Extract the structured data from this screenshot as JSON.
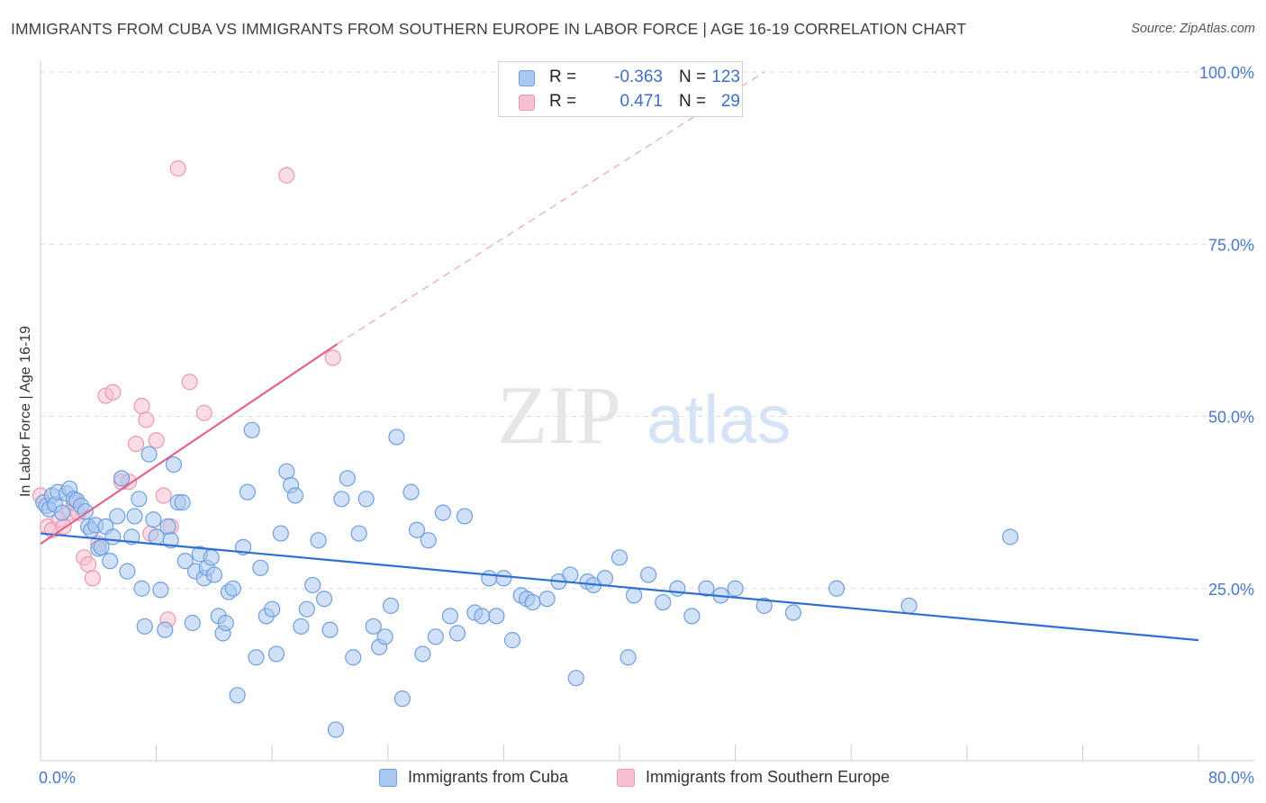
{
  "header": {
    "title": "IMMIGRANTS FROM CUBA VS IMMIGRANTS FROM SOUTHERN EUROPE IN LABOR FORCE | AGE 16-19 CORRELATION CHART",
    "source": "Source: ZipAtlas.com"
  },
  "watermark": {
    "zip": "ZIP",
    "atlas": "atlas"
  },
  "legend": {
    "rows": [
      {
        "r_label": "R =",
        "r_value": "-0.363",
        "n_label": "N =",
        "n_value": "123"
      },
      {
        "r_label": "R =",
        "r_value": "0.471",
        "n_label": "N =",
        "n_value": "29"
      }
    ]
  },
  "bottom_legend": {
    "cuba": "Immigrants from Cuba",
    "seurope": "Immigrants from Southern Europe"
  },
  "colors": {
    "cuba_fill": "#a9c8f0",
    "cuba_stroke": "#6f9fdd",
    "cuba_line": "#2f6fd0",
    "seurope_fill": "#f6c0d0",
    "seurope_stroke": "#e99ab2",
    "seurope_line": "#e0648c",
    "grid": "#dcdcdc",
    "tick_label": "#4a78c8"
  },
  "chart_data": {
    "type": "scatter",
    "title": "IMMIGRANTS FROM CUBA VS IMMIGRANTS FROM SOUTHERN EUROPE IN LABOR FORCE | AGE 16-19 CORRELATION CHART",
    "xlabel": "",
    "ylabel": "In Labor Force | Age 16-19",
    "xlim": [
      0,
      80
    ],
    "ylim": [
      0,
      100
    ],
    "x_tick_labels": [
      "0.0%",
      "80.0%"
    ],
    "y_ticks": [
      {
        "value": 25,
        "label": "25.0%"
      },
      {
        "value": 50,
        "label": "50.0%"
      },
      {
        "value": 75,
        "label": "75.0%"
      },
      {
        "value": 100,
        "label": "100.0%"
      }
    ],
    "grid": true,
    "series": [
      {
        "name": "Immigrants from Cuba",
        "r": -0.363,
        "n": 123,
        "trend": {
          "x": [
            0,
            80
          ],
          "y": [
            33.0,
            17.5
          ],
          "dashed_extension": false
        },
        "points": [
          [
            0.2,
            37.5
          ],
          [
            0.4,
            37.0
          ],
          [
            0.6,
            36.5
          ],
          [
            0.8,
            38.5
          ],
          [
            1.0,
            37.2
          ],
          [
            1.2,
            39.0
          ],
          [
            1.5,
            36.0
          ],
          [
            1.8,
            38.8
          ],
          [
            2.0,
            39.5
          ],
          [
            2.3,
            38.0
          ],
          [
            2.5,
            37.8
          ],
          [
            2.8,
            37.0
          ],
          [
            3.1,
            36.2
          ],
          [
            3.3,
            34.0
          ],
          [
            3.5,
            33.5
          ],
          [
            3.8,
            34.2
          ],
          [
            4.0,
            30.8
          ],
          [
            4.2,
            31.0
          ],
          [
            4.5,
            34.0
          ],
          [
            4.8,
            29.0
          ],
          [
            5.0,
            32.5
          ],
          [
            5.3,
            35.5
          ],
          [
            5.6,
            41.0
          ],
          [
            6.0,
            27.5
          ],
          [
            6.3,
            32.5
          ],
          [
            6.5,
            35.5
          ],
          [
            6.8,
            38.0
          ],
          [
            7.0,
            25.0
          ],
          [
            7.2,
            19.5
          ],
          [
            7.5,
            44.5
          ],
          [
            7.8,
            35.0
          ],
          [
            8.0,
            32.5
          ],
          [
            8.3,
            24.8
          ],
          [
            8.6,
            19.0
          ],
          [
            8.8,
            34.0
          ],
          [
            9.0,
            32.0
          ],
          [
            9.2,
            43.0
          ],
          [
            9.5,
            37.5
          ],
          [
            9.8,
            37.5
          ],
          [
            10.0,
            29.0
          ],
          [
            10.5,
            20.0
          ],
          [
            10.7,
            27.5
          ],
          [
            11.0,
            30.0
          ],
          [
            11.3,
            26.5
          ],
          [
            11.5,
            28.0
          ],
          [
            11.8,
            29.5
          ],
          [
            12.0,
            27.0
          ],
          [
            12.3,
            21.0
          ],
          [
            12.6,
            18.5
          ],
          [
            12.8,
            20.0
          ],
          [
            13.0,
            24.5
          ],
          [
            13.3,
            25.0
          ],
          [
            13.6,
            9.5
          ],
          [
            14.0,
            31.0
          ],
          [
            14.3,
            39.0
          ],
          [
            14.6,
            48.0
          ],
          [
            14.9,
            15.0
          ],
          [
            15.2,
            28.0
          ],
          [
            15.6,
            21.0
          ],
          [
            16.0,
            22.0
          ],
          [
            16.3,
            15.5
          ],
          [
            16.6,
            33.0
          ],
          [
            17.0,
            42.0
          ],
          [
            17.3,
            40.0
          ],
          [
            17.6,
            38.5
          ],
          [
            18.0,
            19.5
          ],
          [
            18.4,
            22.0
          ],
          [
            18.8,
            25.5
          ],
          [
            19.2,
            32.0
          ],
          [
            19.6,
            23.5
          ],
          [
            20.0,
            19.0
          ],
          [
            20.4,
            4.5
          ],
          [
            20.8,
            38.0
          ],
          [
            21.2,
            41.0
          ],
          [
            21.6,
            15.0
          ],
          [
            22.0,
            33.0
          ],
          [
            22.5,
            38.0
          ],
          [
            23.0,
            19.5
          ],
          [
            23.4,
            16.5
          ],
          [
            23.8,
            18.0
          ],
          [
            24.2,
            22.5
          ],
          [
            24.6,
            47.0
          ],
          [
            25.0,
            9.0
          ],
          [
            25.6,
            39.0
          ],
          [
            26.0,
            33.5
          ],
          [
            26.4,
            15.5
          ],
          [
            26.8,
            32.0
          ],
          [
            27.3,
            18.0
          ],
          [
            27.8,
            36.0
          ],
          [
            28.3,
            21.0
          ],
          [
            28.8,
            18.5
          ],
          [
            29.3,
            35.5
          ],
          [
            30.0,
            21.5
          ],
          [
            30.5,
            21.0
          ],
          [
            31.0,
            26.5
          ],
          [
            31.5,
            21.0
          ],
          [
            32.0,
            26.5
          ],
          [
            32.6,
            17.5
          ],
          [
            33.2,
            24.0
          ],
          [
            33.6,
            23.5
          ],
          [
            34.0,
            23.0
          ],
          [
            35.0,
            23.5
          ],
          [
            35.8,
            26.0
          ],
          [
            36.6,
            27.0
          ],
          [
            37.0,
            12.0
          ],
          [
            37.8,
            26.0
          ],
          [
            38.2,
            25.5
          ],
          [
            39.0,
            26.5
          ],
          [
            40.0,
            29.5
          ],
          [
            40.6,
            15.0
          ],
          [
            41.0,
            24.0
          ],
          [
            42.0,
            27.0
          ],
          [
            43.0,
            23.0
          ],
          [
            44.0,
            25.0
          ],
          [
            45.0,
            21.0
          ],
          [
            46.0,
            25.0
          ],
          [
            47.0,
            24.0
          ],
          [
            48.0,
            25.0
          ],
          [
            50.0,
            22.5
          ],
          [
            52.0,
            21.5
          ],
          [
            55.0,
            25.0
          ],
          [
            60.0,
            22.5
          ],
          [
            67.0,
            32.5
          ]
        ]
      },
      {
        "name": "Immigrants from Southern Europe",
        "r": 0.471,
        "n": 29,
        "trend": {
          "x": [
            0,
            20.5
          ],
          "y": [
            31.5,
            60.5
          ],
          "dashed_extension_to": [
            50,
            100
          ]
        },
        "points": [
          [
            0.0,
            38.5
          ],
          [
            0.5,
            34.0
          ],
          [
            0.8,
            33.5
          ],
          [
            1.3,
            35.0
          ],
          [
            1.6,
            34.0
          ],
          [
            2.0,
            36.0
          ],
          [
            2.3,
            37.5
          ],
          [
            2.6,
            36.0
          ],
          [
            3.0,
            29.5
          ],
          [
            3.3,
            28.5
          ],
          [
            3.6,
            26.5
          ],
          [
            4.0,
            31.5
          ],
          [
            4.5,
            53.0
          ],
          [
            5.0,
            53.5
          ],
          [
            5.6,
            40.5
          ],
          [
            6.1,
            40.5
          ],
          [
            6.6,
            46.0
          ],
          [
            7.0,
            51.5
          ],
          [
            7.3,
            49.5
          ],
          [
            7.6,
            33.0
          ],
          [
            8.0,
            46.5
          ],
          [
            8.5,
            38.5
          ],
          [
            8.8,
            20.5
          ],
          [
            9.0,
            34.0
          ],
          [
            9.5,
            86.0
          ],
          [
            10.3,
            55.0
          ],
          [
            11.3,
            50.5
          ],
          [
            17.0,
            85.0
          ],
          [
            20.2,
            58.5
          ]
        ]
      }
    ]
  }
}
